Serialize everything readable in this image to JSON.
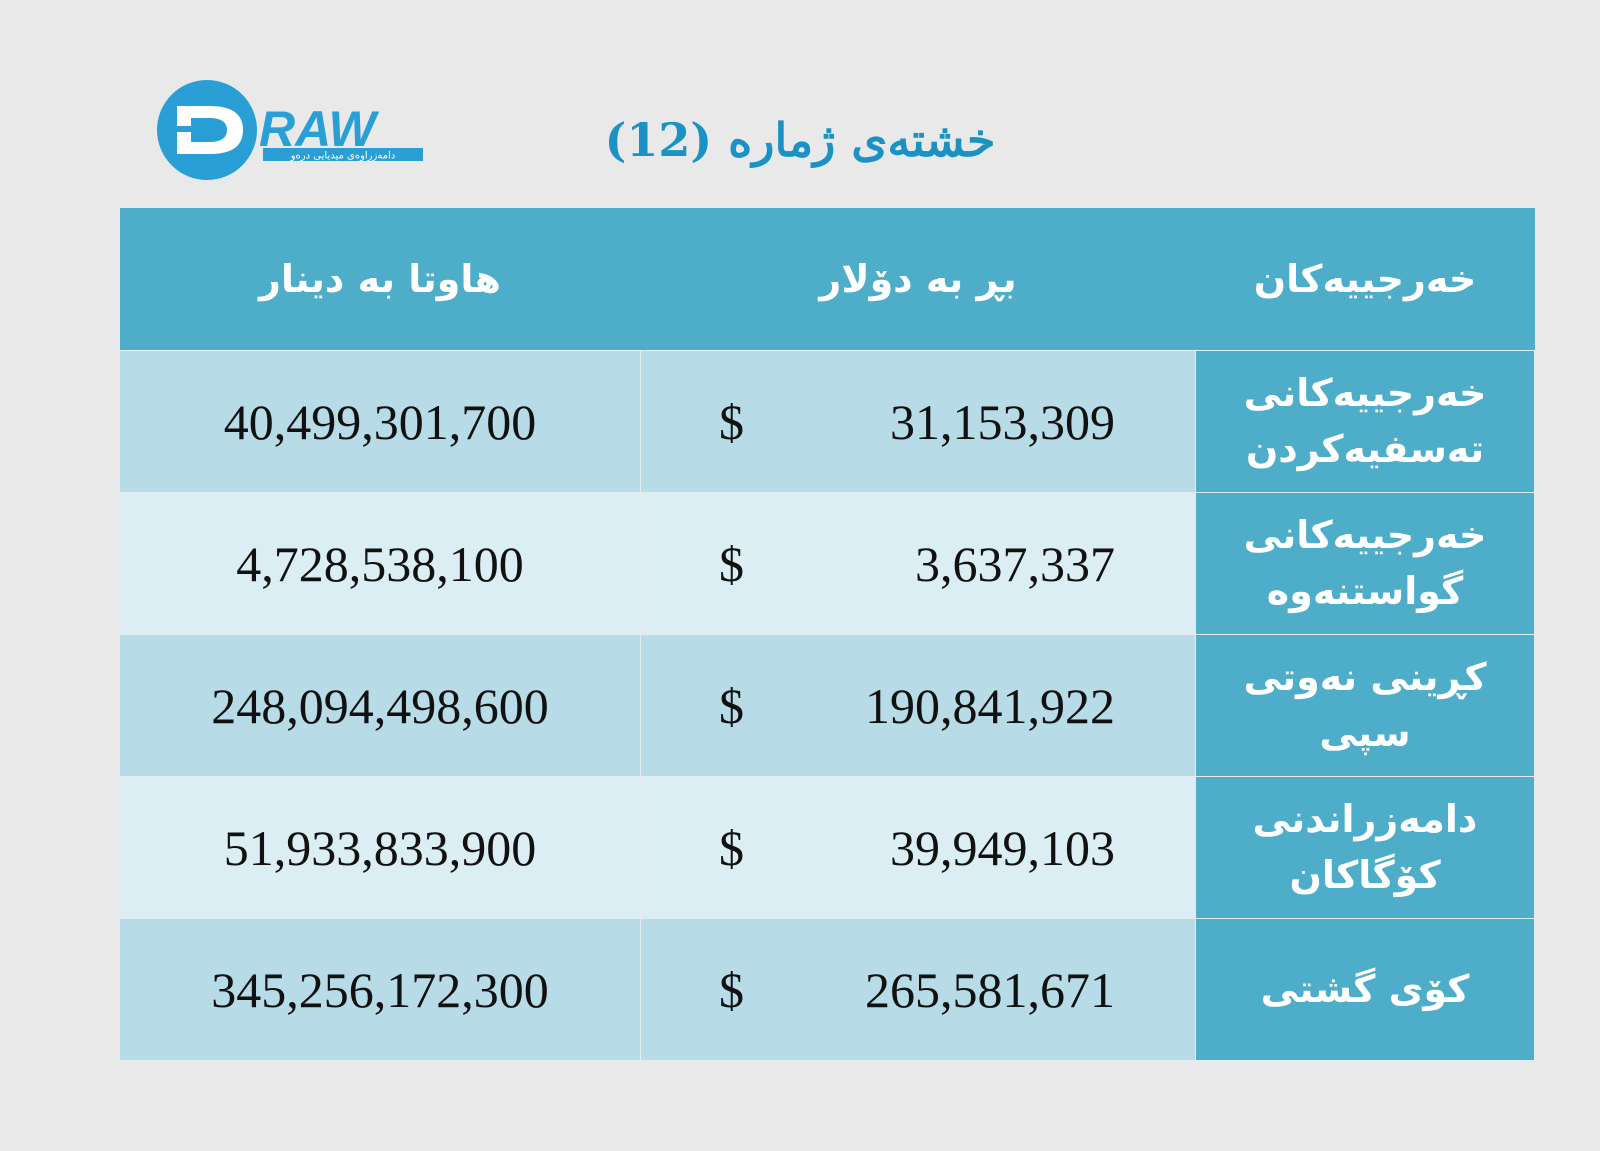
{
  "logo": {
    "text": "RAW",
    "tagline": "دامەزراوەی میدیایی درەو"
  },
  "title": "خشتەی ژمارە (12)",
  "table": {
    "headers": {
      "dinar": "هاوتا بە دینار",
      "dollar": "بڕ بە دۆلار",
      "expenses": "خەرجییەکان"
    },
    "currency_symbol": "$",
    "rows": [
      {
        "label_line1": "خەرجییەکانی",
        "label_line2": "تەسفیەکردن",
        "usd": "31,153,309",
        "dinar": "40,499,301,700"
      },
      {
        "label_line1": "خەرجییەکانی",
        "label_line2": "گواستنەوە",
        "usd": "3,637,337",
        "dinar": "4,728,538,100"
      },
      {
        "label_line1": "کڕینی نەوتی",
        "label_line2": "سپی",
        "usd": "190,841,922",
        "dinar": "248,094,498,600"
      },
      {
        "label_line1": "دامەزراندنی",
        "label_line2": "کۆگاکان",
        "usd": "39,949,103",
        "dinar": "51,933,833,900"
      },
      {
        "label_line1": "کۆی گشتی",
        "label_line2": "",
        "usd": "265,581,671",
        "dinar": "345,256,172,300"
      }
    ]
  }
}
